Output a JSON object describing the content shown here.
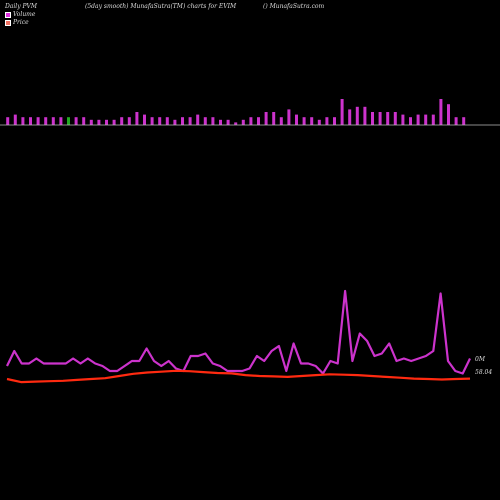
{
  "header": {
    "left": "Daily PVM",
    "center": "(5day smooth) MunafaSutra(TM) charts for EVIM",
    "right": "() MunafaSutra.com"
  },
  "legend": {
    "volume_label": "Volume",
    "volume_color": "#e030e0",
    "price_label": "Price",
    "price_color": "#f07060"
  },
  "axis_labels": {
    "volume": "0M",
    "price": "58.04"
  },
  "chart_data": [
    {
      "type": "bar",
      "description_text": "",
      "series": [
        {
          "name": "Volume",
          "color": "#cc33cc",
          "down_color": "#22aa22",
          "values": [
            3,
            4,
            3,
            3,
            3,
            3,
            3,
            3,
            3,
            3,
            3,
            2,
            2,
            2,
            2,
            3,
            3,
            5,
            4,
            3,
            3,
            3,
            2,
            3,
            3,
            4,
            3,
            3,
            2,
            2,
            1,
            2,
            3,
            3,
            5,
            5,
            3,
            6,
            4,
            3,
            3,
            2,
            3,
            3,
            10,
            6,
            7,
            7,
            5,
            5,
            5,
            5,
            4,
            3,
            4,
            4,
            4,
            10,
            8,
            3,
            3
          ],
          "down": [
            0,
            0,
            0,
            0,
            0,
            0,
            0,
            0,
            1,
            0,
            0,
            0,
            0,
            0,
            0,
            0,
            0,
            0,
            0,
            0,
            0,
            0,
            0,
            0,
            0,
            0,
            0,
            0,
            0,
            0,
            0,
            0,
            0,
            0,
            0,
            0,
            0,
            0,
            0,
            0,
            0,
            0,
            0,
            0,
            0,
            0,
            0,
            0,
            0,
            0,
            0,
            0,
            0,
            0,
            0,
            0,
            0,
            0,
            0,
            0,
            0
          ]
        }
      ],
      "ylim": [
        0,
        10
      ]
    },
    {
      "type": "line",
      "series": [
        {
          "name": "Volume",
          "color": "#cc33cc",
          "values": [
            4,
            10,
            5,
            5,
            7,
            5,
            5,
            5,
            5,
            7,
            5,
            7,
            5,
            4,
            2,
            2,
            4,
            6,
            6,
            11,
            6,
            4,
            6,
            3,
            2,
            8,
            8,
            9,
            5,
            4,
            2,
            2,
            2,
            3,
            8,
            6,
            10,
            12,
            2,
            13,
            5,
            5,
            4,
            1,
            6,
            5,
            34,
            6,
            17,
            14,
            8,
            9,
            13,
            6,
            7,
            6,
            7,
            8,
            10,
            33,
            6,
            2,
            1,
            7
          ],
          "ylim": [
            0,
            36
          ]
        },
        {
          "name": "Price",
          "color": "#ff2a10",
          "values": [
            58.03,
            57.96,
            57.97,
            57.98,
            57.99,
            58.01,
            58.03,
            58.05,
            58.1,
            58.15,
            58.18,
            58.2,
            58.22,
            58.21,
            58.19,
            58.17,
            58.16,
            58.12,
            58.1,
            58.09,
            58.08,
            58.1,
            58.12,
            58.14,
            58.13,
            58.12,
            58.1,
            58.08,
            58.06,
            58.04,
            58.03,
            58.02,
            58.03,
            58.04
          ],
          "ylim": [
            57.8,
            58.4
          ]
        }
      ]
    }
  ]
}
